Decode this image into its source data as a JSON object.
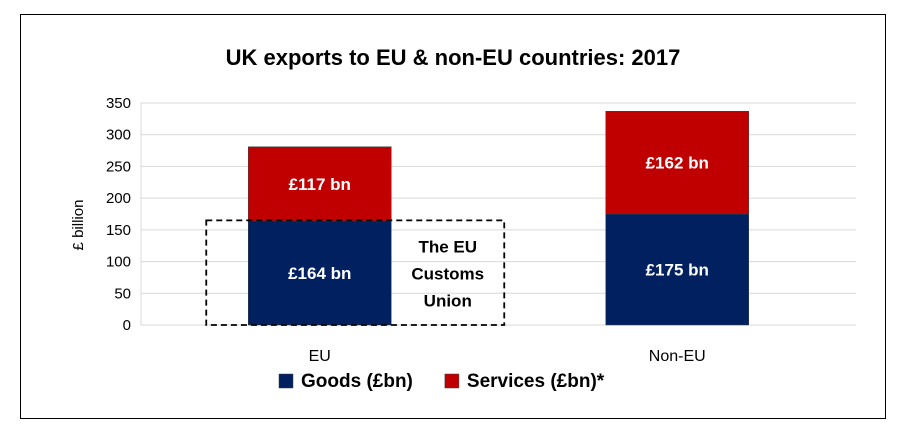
{
  "chart_data": {
    "type": "bar",
    "stacked": true,
    "title": "UK exports to EU & non-EU countries: 2017",
    "ylabel": "£ billion",
    "xlabel": "",
    "ylim": [
      0,
      350
    ],
    "yticks": [
      0,
      50,
      100,
      150,
      200,
      250,
      300,
      350
    ],
    "grid": true,
    "legend_position": "bottom",
    "categories": [
      "EU",
      "Non-EU"
    ],
    "series": [
      {
        "name": "Goods (£bn)",
        "values": [
          164,
          175
        ],
        "color": "#002060",
        "labels": [
          "£164 bn",
          "£175  bn"
        ]
      },
      {
        "name": "Services (£bn)*",
        "values": [
          117,
          162
        ],
        "color": "#C00000",
        "labels": [
          "£117 bn",
          "£162 bn"
        ]
      }
    ],
    "annotation": {
      "lines": [
        "The EU",
        "Customs",
        "Union"
      ],
      "style": "dashed-box",
      "encloses_category": "EU",
      "top_value": 165
    }
  }
}
